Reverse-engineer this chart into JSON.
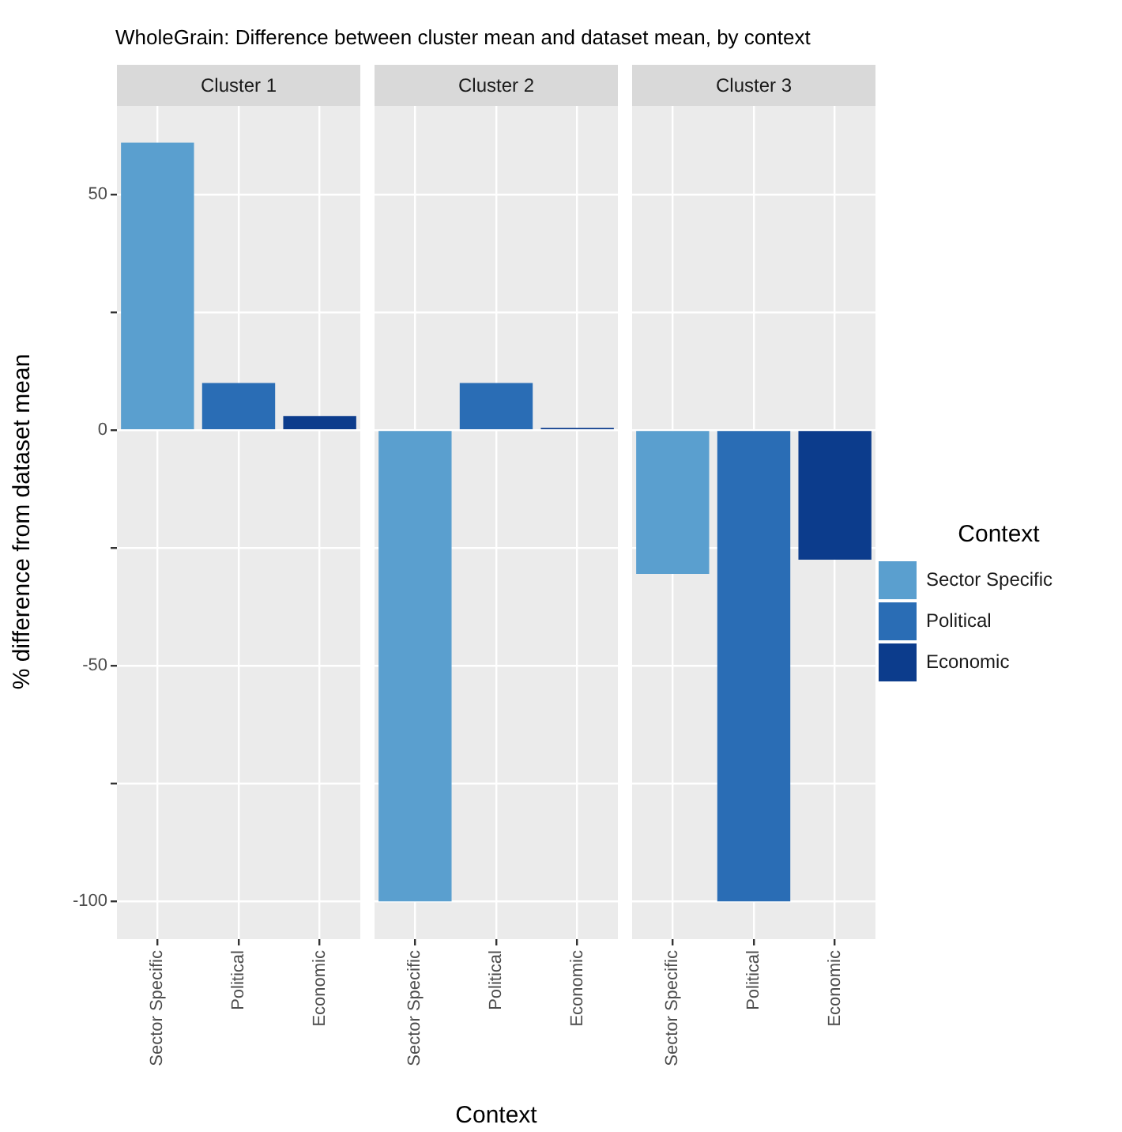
{
  "chart_data": [
    {
      "type": "bar",
      "title": "Cluster 1",
      "annotations": [
        "WholeGrain: Difference between cluster mean and dataset mean, by context"
      ],
      "ylabel": "% difference from dataset mean",
      "categories": [
        "Sector Specific",
        "Political",
        "Economic"
      ],
      "series": [
        {
          "color": "#5a9fcf",
          "values": [
            61,
            null,
            null
          ]
        },
        {
          "color": "#2a6db5",
          "values": [
            null,
            10,
            null
          ]
        },
        {
          "color": "#0c3c8c",
          "values": [
            null,
            null,
            3
          ]
        }
      ],
      "ylim": [
        -108,
        68.8
      ],
      "yticks": [
        -100,
        {
          "value": -75,
          "label": null
        },
        -50,
        {
          "value": -25,
          "label": null
        },
        0,
        {
          "value": 25,
          "label": null
        },
        50
      ],
      "grid": true
    },
    {
      "type": "bar",
      "title": "Cluster 2",
      "xlabel": "Context",
      "categories": [
        "Sector Specific",
        "Political",
        "Economic"
      ],
      "series": [
        {
          "color": "#5a9fcf",
          "values": [
            -100,
            null,
            null
          ]
        },
        {
          "color": "#2a6db5",
          "values": [
            null,
            10,
            null
          ]
        },
        {
          "color": "#0c3c8c",
          "values": [
            null,
            null,
            0.5
          ]
        }
      ],
      "ylim": [
        -108,
        68.8
      ],
      "yticks": [
        -100,
        {
          "value": -75,
          "label": null
        },
        -50,
        {
          "value": -25,
          "label": null
        },
        0,
        {
          "value": 25,
          "label": null
        },
        50
      ],
      "grid": true,
      "tick_labels": "x"
    },
    {
      "type": "bar",
      "title": "Cluster 3",
      "legend": "right",
      "legend_title": "Context",
      "categories": [
        "Sector Specific",
        "Political",
        "Economic"
      ],
      "series": [
        {
          "name": "Sector Specific",
          "color": "#5a9fcf",
          "values": [
            -30.5,
            null,
            null
          ]
        },
        {
          "name": "Political",
          "color": "#2a6db5",
          "values": [
            null,
            -100,
            null
          ]
        },
        {
          "name": "Economic",
          "color": "#0c3c8c",
          "values": [
            null,
            null,
            -27.5
          ]
        }
      ],
      "ylim": [
        -108,
        68.8
      ],
      "yticks": [
        -100,
        {
          "value": -75,
          "label": null
        },
        -50,
        {
          "value": -25,
          "label": null
        },
        0,
        {
          "value": 25,
          "label": null
        },
        50
      ],
      "grid": true,
      "tick_labels": "x"
    }
  ]
}
